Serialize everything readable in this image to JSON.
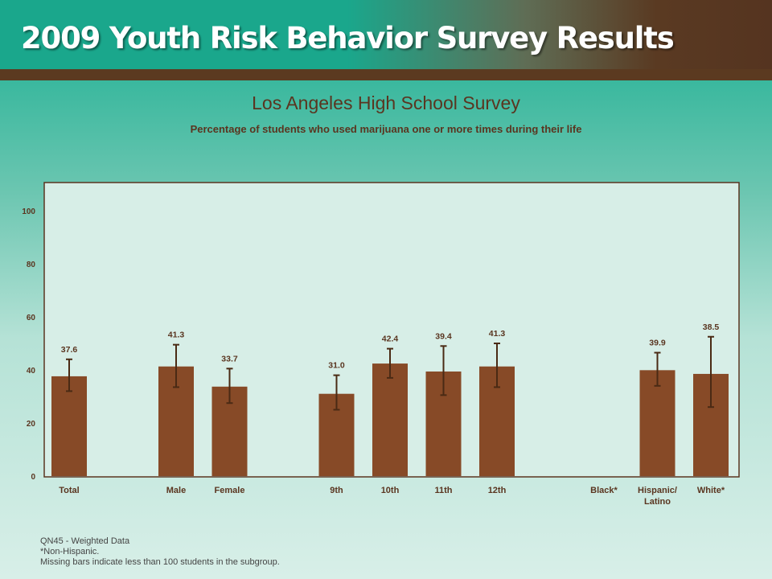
{
  "header": {
    "title": "2009 Youth Risk Behavior Survey Results"
  },
  "colors": {
    "bar": "#874a27",
    "text": "#5a3520",
    "plot_border": "#5a3520"
  },
  "chart_data": {
    "type": "bar",
    "title": "Los Angeles High School Survey",
    "subtitle": "Percentage of students who used marijuana one or more times during their life",
    "xlabel": "",
    "ylabel": "",
    "ylim": [
      0,
      110
    ],
    "yticks": [
      0,
      20,
      40,
      60,
      80,
      100
    ],
    "grid": false,
    "categories": [
      "Total",
      "",
      "Male",
      "Female",
      "",
      "9th",
      "10th",
      "11th",
      "12th",
      "",
      "Black*",
      "Hispanic/ Latino",
      "White*"
    ],
    "values": [
      37.6,
      null,
      41.3,
      33.7,
      null,
      31.0,
      42.4,
      39.4,
      41.3,
      null,
      null,
      39.9,
      38.5
    ],
    "value_labels": [
      "37.6",
      "",
      "41.3",
      "33.7",
      "",
      "31.0",
      "42.4",
      "39.4",
      "41.3",
      "",
      "",
      "39.9",
      "38.5"
    ],
    "error_low": [
      32,
      null,
      33.5,
      27.5,
      null,
      25,
      37,
      30.5,
      33.5,
      null,
      null,
      34,
      26
    ],
    "error_high": [
      44,
      null,
      49.5,
      40.5,
      null,
      38,
      48,
      49,
      50,
      null,
      null,
      46.5,
      52.5
    ]
  },
  "footnotes": {
    "line1": "QN45 - Weighted Data",
    "line2": "*Non-Hispanic.",
    "line3": "Missing bars indicate less than 100 students in the subgroup."
  }
}
